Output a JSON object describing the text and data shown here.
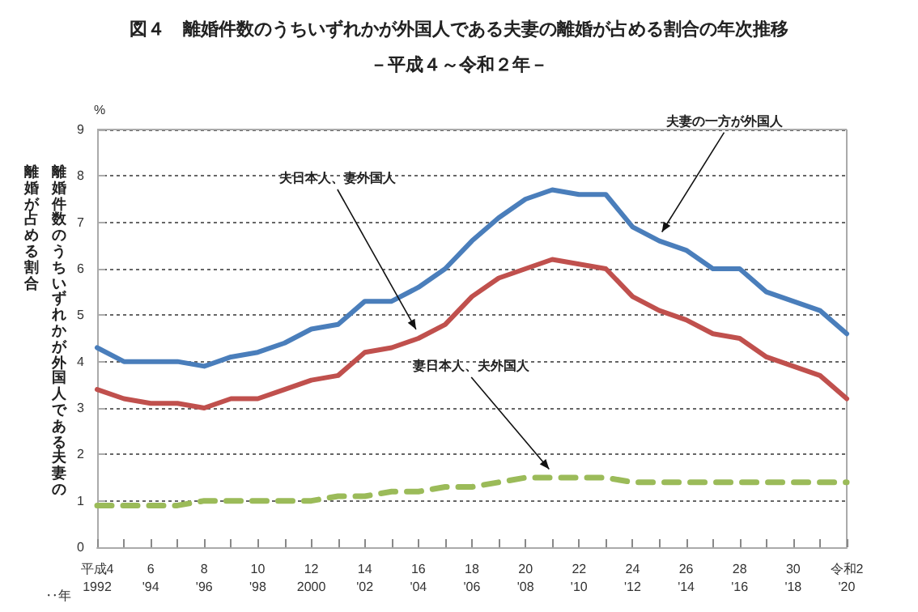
{
  "chart_data": {
    "type": "line",
    "title": "図４　離婚件数のうちいずれかが外国人である夫妻の離婚が占める割合の年次推移",
    "subtitle": "－平成４～令和２年－",
    "ylabel": "離婚件数のうちいずれかが外国人である夫妻の離婚が占める割合",
    "xlabel": "‥年",
    "annotations": [
      "%"
    ],
    "categories": [
      "平成4\n1992",
      null,
      "6\n'94",
      null,
      "8\n'96",
      null,
      "10\n'98",
      null,
      "12\n2000",
      null,
      "14\n'02",
      null,
      "16\n'04",
      null,
      "18\n'06",
      null,
      "20\n'08",
      null,
      "22\n'10",
      null,
      "24\n'12",
      null,
      "26\n'14",
      null,
      "28\n'16",
      null,
      "30\n'18",
      null,
      "令和2\n'20"
    ],
    "series": [
      {
        "name": "夫妻の一方が外国人",
        "color": "#4a7ebb",
        "values": [
          4.3,
          4.0,
          4.0,
          4.0,
          3.9,
          4.1,
          4.2,
          4.4,
          4.7,
          4.8,
          5.3,
          5.3,
          5.6,
          6.0,
          6.6,
          7.1,
          7.5,
          7.7,
          7.6,
          7.6,
          6.9,
          6.6,
          6.4,
          6.0,
          6.0,
          5.5,
          5.3,
          5.1,
          4.6
        ]
      },
      {
        "name": "夫日本人、妻外国人",
        "color": "#c0504d",
        "values": [
          3.4,
          3.2,
          3.1,
          3.1,
          3.0,
          3.2,
          3.2,
          3.4,
          3.6,
          3.7,
          4.2,
          4.3,
          4.5,
          4.8,
          5.4,
          5.8,
          6.0,
          6.2,
          6.1,
          6.0,
          5.4,
          5.1,
          4.9,
          4.6,
          4.5,
          4.1,
          3.9,
          3.7,
          3.2
        ]
      },
      {
        "name": "妻日本人、夫外国人",
        "color": "#9bbb59",
        "line_style": "dashed",
        "values": [
          0.9,
          0.9,
          0.9,
          0.9,
          1.0,
          1.0,
          1.0,
          1.0,
          1.0,
          1.1,
          1.1,
          1.2,
          1.2,
          1.3,
          1.3,
          1.4,
          1.5,
          1.5,
          1.5,
          1.5,
          1.4,
          1.4,
          1.4,
          1.4,
          1.4,
          1.4,
          1.4,
          1.4,
          1.4
        ]
      }
    ],
    "ylim": [
      0,
      9
    ],
    "yticks": [
      0,
      1,
      2,
      3,
      4,
      5,
      6,
      7,
      8,
      9
    ],
    "grid": "y",
    "legend": false,
    "marker": "none",
    "line_style": "solid"
  }
}
